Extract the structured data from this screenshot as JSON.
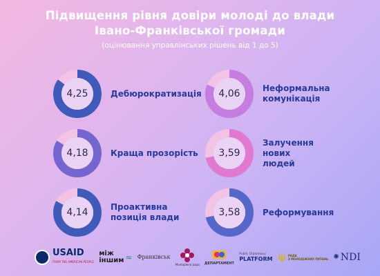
{
  "header": {
    "line1": "Підвищення рівня довіри молоді до влади",
    "line2": "Івано-Франківської громади",
    "line3": "(оцінювання управлінських рішень від 1 до 5)"
  },
  "scale_max": 5,
  "colors": {
    "text_value": "#2a2a4a",
    "label": "#273a9c",
    "ring_track": "#f3c3e6"
  },
  "items": [
    {
      "value": "4,25",
      "score": 4.25,
      "label": "Дебюрократизація",
      "ring_color": "#3f5ab8"
    },
    {
      "value": "4,06",
      "score": 4.06,
      "label": "Неформальна комунікація",
      "ring_color": "#c57de0"
    },
    {
      "value": "4,18",
      "score": 4.18,
      "label": "Краща прозорість",
      "ring_color": "#7565cf"
    },
    {
      "value": "3,59",
      "score": 3.59,
      "label": "Залучення нових людей",
      "ring_color": "#e07ad0"
    },
    {
      "value": "4,14",
      "score": 4.14,
      "label": "Проактивна позиція влади",
      "ring_color": "#3f5ab8"
    },
    {
      "value": "3,58",
      "score": 3.58,
      "label": "Реформування",
      "ring_color": "#5667c9"
    }
  ],
  "logos": {
    "usaid": {
      "name": "USAID",
      "sub": "FROM THE AMERICAN PEOPLE"
    },
    "mizh": {
      "line1": "між",
      "line2": "іншим"
    },
    "frankivsk": {
      "text": "Франківськ"
    },
    "molodizhna": {
      "text": "Молодіжна рада"
    },
    "department": {
      "text": "ДЕПАРТАМЕНТ"
    },
    "platform": {
      "top": "Public Diplomacy",
      "name": "PLATFORM"
    },
    "rada": {
      "line1": "РАДА",
      "line2": "З МОЛОДІЖНИХ ПИТАНЬ"
    },
    "ndi": {
      "text": "NDI"
    }
  }
}
